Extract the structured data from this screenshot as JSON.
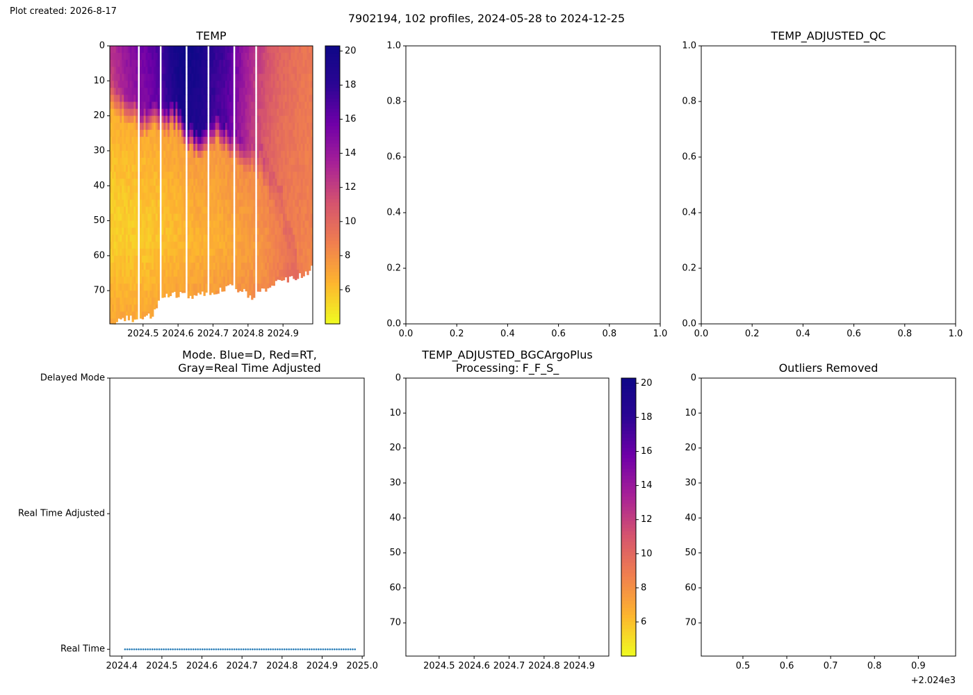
{
  "created_label": "Plot created: 2026-8-17",
  "suptitle": "7902194, 102 profiles, 2024-05-28 to 2024-12-25",
  "colorscale": {
    "name": "plasma_r",
    "stops": [
      "#f0f921",
      "#fdb42f",
      "#f07f4f",
      "#d5546e",
      "#a72197",
      "#6f00a8",
      "#2a0593",
      "#0d0887"
    ]
  },
  "chart_data": [
    {
      "id": "temp",
      "type": "heatmap",
      "title": "TEMP",
      "x_ticks": [
        2024.5,
        2024.6,
        2024.7,
        2024.8,
        2024.9
      ],
      "x_tick_labels": [
        "2024.5",
        "2024.6",
        "2024.7",
        "2024.8",
        "2024.9"
      ],
      "xlim": [
        2024.405,
        2024.985
      ],
      "ylim": [
        79.5,
        0
      ],
      "y_ticks": [
        0,
        10,
        20,
        30,
        40,
        50,
        60,
        70
      ],
      "y_tick_labels": [
        "0",
        "10",
        "20",
        "30",
        "40",
        "50",
        "60",
        "70"
      ],
      "colorbar": {
        "range": [
          4.0,
          20.3
        ],
        "ticks": [
          6,
          8,
          10,
          12,
          14,
          16,
          18,
          20
        ],
        "tick_labels": [
          "6",
          "8",
          "10",
          "12",
          "14",
          "16",
          "18",
          "20"
        ]
      },
      "profile_date_range": [
        2024.408,
        2024.982
      ],
      "profiles_count": 102,
      "gap_dates": [
        2024.487,
        2024.55,
        2024.622,
        2024.689,
        2024.758,
        2024.821
      ],
      "max_depth_anchors": {
        "x": [
          2024.41,
          2024.45,
          2024.49,
          2024.53,
          2024.55,
          2024.6,
          2024.65,
          2024.7,
          2024.75,
          2024.79,
          2024.81,
          2024.85,
          2024.88,
          2024.92,
          2024.96,
          2024.985
        ],
        "depth": [
          79,
          78,
          78,
          77,
          72,
          71,
          71.5,
          70.5,
          69,
          70.5,
          72.5,
          69.5,
          67.5,
          66.5,
          65.5,
          63.5
        ]
      },
      "thermocline_depth_anchors": {
        "x": [
          2024.41,
          2024.45,
          2024.5,
          2024.55,
          2024.6,
          2024.63,
          2024.66,
          2024.7,
          2024.73,
          2024.76,
          2024.8,
          2024.84,
          2024.86,
          2024.9,
          2024.93,
          2024.985
        ],
        "depth": [
          13,
          16,
          20,
          19,
          19,
          24,
          27,
          22,
          24,
          28,
          30,
          33,
          38,
          46,
          58,
          90
        ]
      },
      "surface_temp_anchors": {
        "x": [
          2024.41,
          2024.46,
          2024.5,
          2024.55,
          2024.58,
          2024.6,
          2024.62,
          2024.66,
          2024.7,
          2024.74,
          2024.78,
          2024.82,
          2024.86,
          2024.9,
          2024.94,
          2024.985
        ],
        "temp": [
          12.5,
          14.5,
          15.5,
          17.0,
          19.0,
          20.0,
          20.2,
          19.5,
          18.0,
          17.0,
          14.5,
          12.5,
          11.0,
          10.0,
          9.5,
          9.0
        ]
      },
      "deep_temp_anchors": {
        "x": [
          2024.41,
          2024.5,
          2024.6,
          2024.7,
          2024.8,
          2024.9,
          2024.985
        ],
        "temp": [
          5.5,
          5.6,
          6.2,
          6.5,
          7.0,
          8.0,
          8.5
        ]
      }
    },
    {
      "id": "temp-adjusted-qc-empty",
      "type": "scatter",
      "title": "",
      "x_ticks": [
        0.0,
        0.2,
        0.4,
        0.6,
        0.8,
        1.0
      ],
      "x_tick_labels": [
        "0.0",
        "0.2",
        "0.4",
        "0.6",
        "0.8",
        "1.0"
      ],
      "y_ticks": [
        0.0,
        0.2,
        0.4,
        0.6,
        0.8,
        1.0
      ],
      "y_tick_labels": [
        "0.0",
        "0.2",
        "0.4",
        "0.6",
        "0.8",
        "1.0"
      ],
      "xlim": [
        0,
        1
      ],
      "ylim": [
        0,
        1
      ]
    },
    {
      "id": "temp-adjusted-qc",
      "type": "scatter",
      "title": "TEMP_ADJUSTED_QC",
      "x_ticks": [
        0.0,
        0.2,
        0.4,
        0.6,
        0.8,
        1.0
      ],
      "x_tick_labels": [
        "0.0",
        "0.2",
        "0.4",
        "0.6",
        "0.8",
        "1.0"
      ],
      "y_ticks": [
        0.0,
        0.2,
        0.4,
        0.6,
        0.8,
        1.0
      ],
      "y_tick_labels": [
        "0.0",
        "0.2",
        "0.4",
        "0.6",
        "0.8",
        "1.0"
      ],
      "xlim": [
        0,
        1
      ],
      "ylim": [
        0,
        1
      ]
    },
    {
      "id": "mode",
      "type": "scatter",
      "title_lines": [
        "Mode. Blue=D, Red=RT,",
        "Gray=Real Time Adjusted"
      ],
      "x_ticks": [
        2024.4,
        2024.5,
        2024.6,
        2024.7,
        2024.8,
        2024.9,
        2025.0
      ],
      "x_tick_labels": [
        "2024.4",
        "2024.5",
        "2024.6",
        "2024.7",
        "2024.8",
        "2024.9",
        "2025.0"
      ],
      "xlim": [
        2024.37,
        2025.005
      ],
      "y_categories": [
        "Delayed Mode",
        "Real Time Adjusted",
        "Real Time"
      ],
      "y_values": [
        2,
        1,
        0
      ],
      "ylim": [
        -0.05,
        2.0
      ],
      "series": [
        {
          "color": "#1f77b4",
          "y": 0,
          "x_start": 2024.408,
          "x_end": 2024.982,
          "count": 102
        }
      ]
    },
    {
      "id": "temp-adjusted-bgcargoplus",
      "type": "heatmap",
      "title_lines": [
        "TEMP_ADJUSTED_BGCArgoPlus",
        "Processing: F_F_S_"
      ],
      "x_ticks": [
        2024.5,
        2024.6,
        2024.7,
        2024.8,
        2024.9
      ],
      "x_tick_labels": [
        "2024.5",
        "2024.6",
        "2024.7",
        "2024.8",
        "2024.9"
      ],
      "xlim": [
        2024.405,
        2024.985
      ],
      "y_ticks": [
        0,
        10,
        20,
        30,
        40,
        50,
        60,
        70
      ],
      "y_tick_labels": [
        "0",
        "10",
        "20",
        "30",
        "40",
        "50",
        "60",
        "70"
      ],
      "ylim": [
        79.5,
        0
      ],
      "colorbar": {
        "range": [
          4.0,
          20.3
        ],
        "ticks": [
          6,
          8,
          10,
          12,
          14,
          16,
          18,
          20
        ],
        "tick_labels": [
          "6",
          "8",
          "10",
          "12",
          "14",
          "16",
          "18",
          "20"
        ]
      }
    },
    {
      "id": "outliers-removed",
      "type": "scatter",
      "title": "Outliers Removed",
      "x_ticks": [
        0.5,
        0.6,
        0.7,
        0.8,
        0.9
      ],
      "x_tick_labels": [
        "0.5",
        "0.6",
        "0.7",
        "0.8",
        "0.9"
      ],
      "x_offset_label": "+2.024e3",
      "xlim": [
        0.405,
        0.985
      ],
      "y_ticks": [
        0,
        10,
        20,
        30,
        40,
        50,
        60,
        70
      ],
      "y_tick_labels": [
        "0",
        "10",
        "20",
        "30",
        "40",
        "50",
        "60",
        "70"
      ],
      "ylim": [
        79.5,
        0
      ]
    }
  ]
}
